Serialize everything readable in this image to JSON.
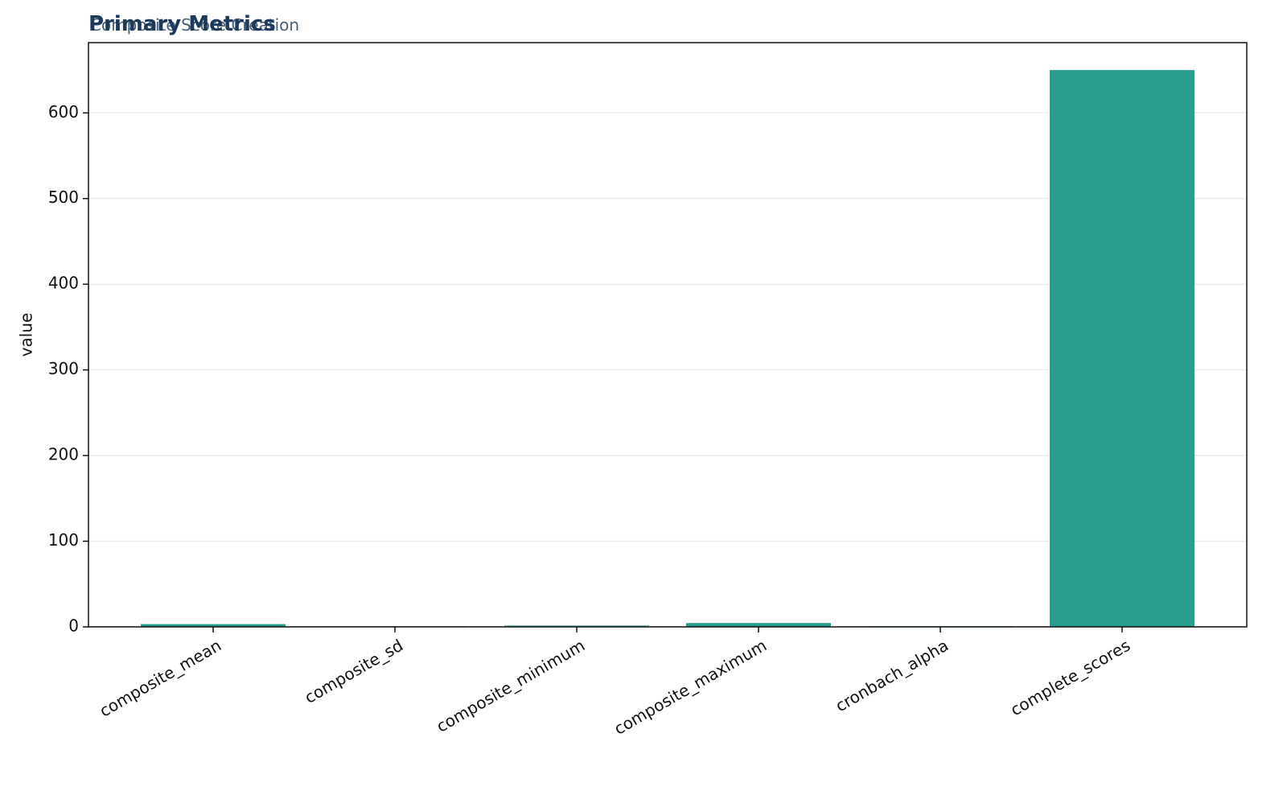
{
  "chart_data": {
    "type": "bar",
    "title": "Primary Metrics",
    "subtitle": "Composite Score Creation",
    "y_label": "value",
    "categories": [
      "composite_mean",
      "composite_sd",
      "composite_minimum",
      "composite_maximum",
      "cronbach_alpha",
      "complete_scores"
    ],
    "values": [
      3.2,
      0.7,
      1.5,
      4.5,
      0.8,
      650
    ],
    "color": "#2a9d8f",
    "ylim": [
      0,
      682
    ],
    "yticks": [
      0,
      100,
      200,
      300,
      400,
      500,
      600
    ],
    "grid": true
  }
}
